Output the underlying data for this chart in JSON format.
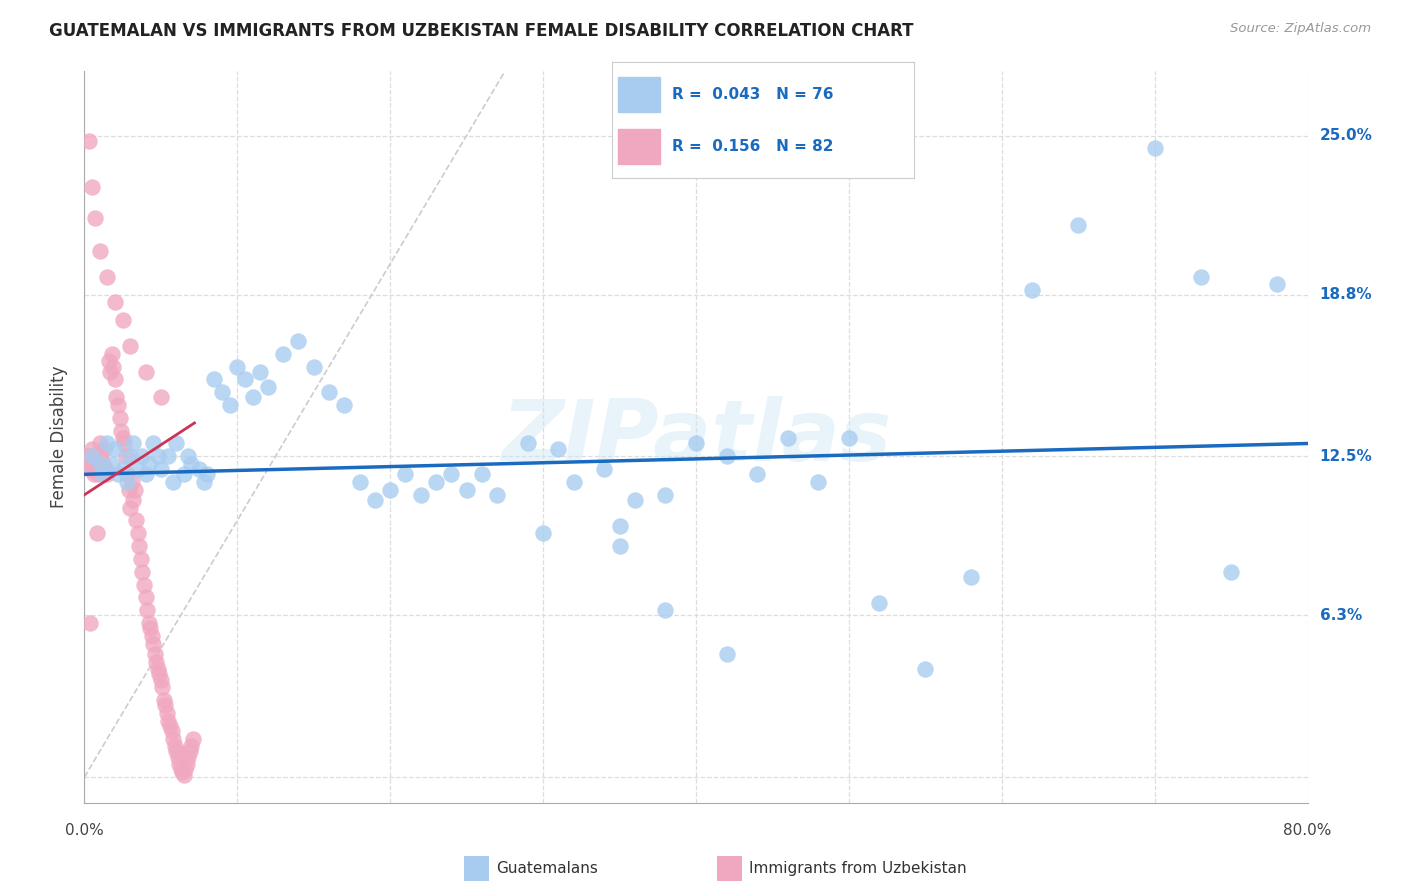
{
  "title": "GUATEMALAN VS IMMIGRANTS FROM UZBEKISTAN FEMALE DISABILITY CORRELATION CHART",
  "source": "Source: ZipAtlas.com",
  "ylabel": "Female Disability",
  "xmin": 0.0,
  "xmax": 0.8,
  "ymin": -0.01,
  "ymax": 0.275,
  "ytick_vals": [
    0.0,
    0.063,
    0.125,
    0.188,
    0.25
  ],
  "ytick_labels": [
    "",
    "6.3%",
    "12.5%",
    "18.8%",
    "25.0%"
  ],
  "r_blue": 0.043,
  "n_blue": 76,
  "r_pink": 0.156,
  "n_pink": 82,
  "blue_color": "#a8ccf0",
  "pink_color": "#f0a8c0",
  "blue_line_color": "#1a6bbf",
  "pink_line_color": "#cc3355",
  "legend_blue": "Guatemalans",
  "legend_pink": "Immigrants from Uzbekistan",
  "blue_x": [
    0.005,
    0.01,
    0.012,
    0.015,
    0.018,
    0.02,
    0.022,
    0.025,
    0.028,
    0.03,
    0.032,
    0.035,
    0.038,
    0.04,
    0.042,
    0.045,
    0.048,
    0.05,
    0.055,
    0.058,
    0.06,
    0.065,
    0.068,
    0.07,
    0.075,
    0.078,
    0.08,
    0.085,
    0.09,
    0.095,
    0.1,
    0.105,
    0.11,
    0.115,
    0.12,
    0.13,
    0.14,
    0.15,
    0.16,
    0.17,
    0.18,
    0.19,
    0.2,
    0.21,
    0.22,
    0.23,
    0.24,
    0.25,
    0.26,
    0.27,
    0.29,
    0.31,
    0.32,
    0.34,
    0.35,
    0.36,
    0.38,
    0.4,
    0.42,
    0.44,
    0.46,
    0.48,
    0.5,
    0.52,
    0.55,
    0.58,
    0.62,
    0.65,
    0.7,
    0.73,
    0.75,
    0.78,
    0.3,
    0.35,
    0.38,
    0.42
  ],
  "blue_y": [
    0.125,
    0.122,
    0.118,
    0.13,
    0.122,
    0.128,
    0.118,
    0.12,
    0.115,
    0.125,
    0.13,
    0.12,
    0.125,
    0.118,
    0.122,
    0.13,
    0.125,
    0.12,
    0.125,
    0.115,
    0.13,
    0.118,
    0.125,
    0.122,
    0.12,
    0.115,
    0.118,
    0.155,
    0.15,
    0.145,
    0.16,
    0.155,
    0.148,
    0.158,
    0.152,
    0.165,
    0.17,
    0.16,
    0.15,
    0.145,
    0.115,
    0.108,
    0.112,
    0.118,
    0.11,
    0.115,
    0.118,
    0.112,
    0.118,
    0.11,
    0.13,
    0.128,
    0.115,
    0.12,
    0.098,
    0.108,
    0.11,
    0.13,
    0.125,
    0.118,
    0.132,
    0.115,
    0.132,
    0.068,
    0.042,
    0.078,
    0.19,
    0.215,
    0.245,
    0.195,
    0.08,
    0.192,
    0.095,
    0.09,
    0.065,
    0.048
  ],
  "pink_x": [
    0.002,
    0.003,
    0.004,
    0.005,
    0.006,
    0.007,
    0.008,
    0.009,
    0.01,
    0.011,
    0.012,
    0.013,
    0.014,
    0.015,
    0.016,
    0.017,
    0.018,
    0.019,
    0.02,
    0.021,
    0.022,
    0.023,
    0.024,
    0.025,
    0.026,
    0.027,
    0.028,
    0.029,
    0.03,
    0.031,
    0.032,
    0.033,
    0.034,
    0.035,
    0.036,
    0.037,
    0.038,
    0.039,
    0.04,
    0.041,
    0.042,
    0.043,
    0.044,
    0.045,
    0.046,
    0.047,
    0.048,
    0.049,
    0.05,
    0.051,
    0.052,
    0.053,
    0.054,
    0.055,
    0.056,
    0.057,
    0.058,
    0.059,
    0.06,
    0.061,
    0.062,
    0.063,
    0.064,
    0.065,
    0.066,
    0.067,
    0.068,
    0.069,
    0.07,
    0.071,
    0.003,
    0.005,
    0.007,
    0.01,
    0.015,
    0.02,
    0.025,
    0.03,
    0.04,
    0.05,
    0.004,
    0.008
  ],
  "pink_y": [
    0.125,
    0.122,
    0.12,
    0.128,
    0.118,
    0.125,
    0.122,
    0.118,
    0.13,
    0.125,
    0.122,
    0.128,
    0.12,
    0.118,
    0.162,
    0.158,
    0.165,
    0.16,
    0.155,
    0.148,
    0.145,
    0.14,
    0.135,
    0.132,
    0.13,
    0.125,
    0.118,
    0.112,
    0.105,
    0.115,
    0.108,
    0.112,
    0.1,
    0.095,
    0.09,
    0.085,
    0.08,
    0.075,
    0.07,
    0.065,
    0.06,
    0.058,
    0.055,
    0.052,
    0.048,
    0.045,
    0.042,
    0.04,
    0.038,
    0.035,
    0.03,
    0.028,
    0.025,
    0.022,
    0.02,
    0.018,
    0.015,
    0.012,
    0.01,
    0.008,
    0.005,
    0.003,
    0.002,
    0.001,
    0.003,
    0.005,
    0.008,
    0.01,
    0.012,
    0.015,
    0.248,
    0.23,
    0.218,
    0.205,
    0.195,
    0.185,
    0.178,
    0.168,
    0.158,
    0.148,
    0.06,
    0.095
  ]
}
